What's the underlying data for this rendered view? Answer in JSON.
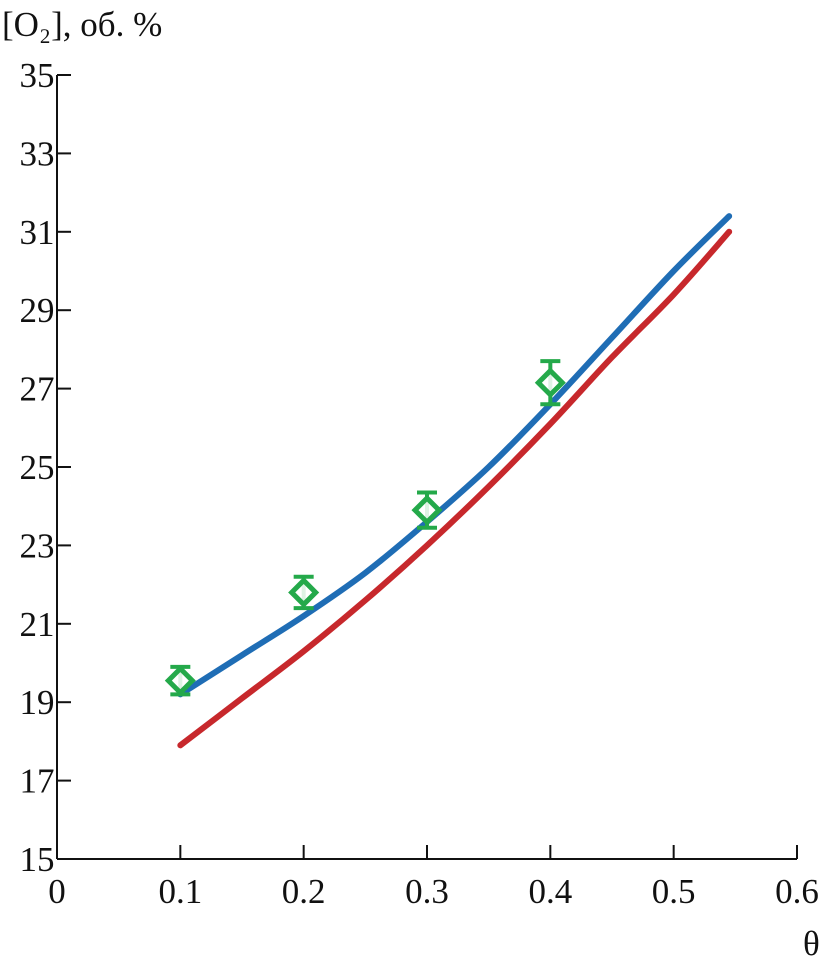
{
  "chart_data": {
    "type": "line",
    "title": "",
    "ylabel": "[O₂], об. %",
    "xlabel": "θ",
    "xlim": [
      0,
      0.6
    ],
    "ylim": [
      15,
      35
    ],
    "x_ticks": [
      0,
      0.1,
      0.2,
      0.3,
      0.4,
      0.5,
      0.6
    ],
    "x_tick_labels": [
      "0",
      "0.1",
      "0.2",
      "0.3",
      "0.4",
      "0.5",
      "0.6"
    ],
    "y_ticks": [
      15,
      17,
      19,
      21,
      23,
      25,
      27,
      29,
      31,
      33,
      35
    ],
    "y_tick_labels": [
      "15",
      "17",
      "19",
      "21",
      "23",
      "25",
      "27",
      "29",
      "31",
      "33",
      "35"
    ],
    "grid": false,
    "series": [
      {
        "color": "#1f6db5",
        "kind": "line",
        "x": [
          0.1,
          0.15,
          0.2,
          0.25,
          0.3,
          0.35,
          0.4,
          0.45,
          0.5,
          0.545
        ],
        "y": [
          19.2,
          20.2,
          21.2,
          22.3,
          23.6,
          25.0,
          26.6,
          28.3,
          30.0,
          31.4
        ]
      },
      {
        "color": "#c7282c",
        "kind": "line",
        "x": [
          0.1,
          0.15,
          0.2,
          0.25,
          0.3,
          0.35,
          0.4,
          0.45,
          0.5,
          0.545
        ],
        "y": [
          17.9,
          19.1,
          20.3,
          21.6,
          23.0,
          24.5,
          26.1,
          27.8,
          29.4,
          31.0
        ]
      },
      {
        "color": "#24a94a",
        "kind": "scatter",
        "marker": "diamond",
        "x": [
          0.1,
          0.2,
          0.3,
          0.4
        ],
        "y": [
          19.55,
          21.8,
          23.9,
          27.15
        ],
        "error": [
          0.35,
          0.4,
          0.45,
          0.55
        ]
      }
    ]
  }
}
